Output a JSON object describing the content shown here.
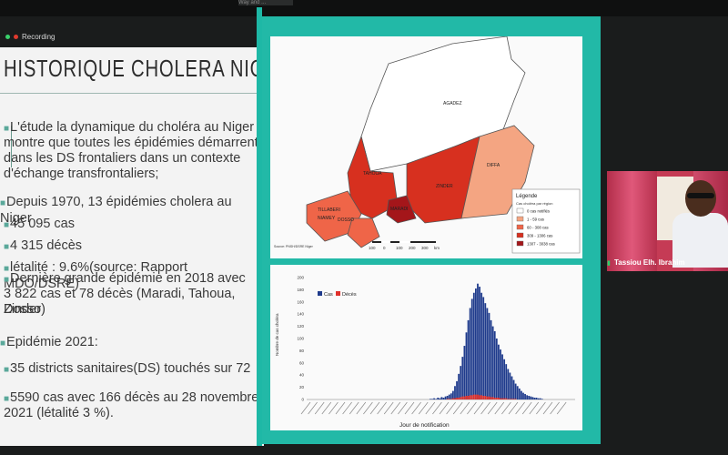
{
  "topbar": {
    "tab_label": "Way and ..."
  },
  "recording": {
    "label": "Recording"
  },
  "slide": {
    "title": "HISTORIQUE CHOLERA NIGER",
    "bullets": [
      "L'étude la dynamique du choléra au Niger",
      "montre que toutes les épidémies démarrent",
      "dans les DS frontaliers dans un contexte",
      "d'échange transfrontaliers;",
      "Depuis 1970, 13 épidémies cholera au Niger",
      "45 095 cas",
      "4 315 décès",
      "létalité : 9.6%(source: Rapport MDO/DSRE)",
      "Dernière grande épidémie en 2018 avec",
      "3 822 cas et 78 décès (Maradi, Tahoua, Dosso",
      "Zinder)",
      "Epidémie 2021:",
      "35 districts sanitaires(DS) touchés sur 72",
      "5590 cas avec 166 décès au 28 novembre",
      "2021 (létalité 3 %)."
    ]
  },
  "map": {
    "regions": [
      "AGADEZ",
      "DIFFA",
      "TAHOUA",
      "ZINDER",
      "TILLABERI",
      "MARADI",
      "NIAMEY",
      "DOSSO"
    ],
    "legend_title": "Légende",
    "legend_subtitle": "Cas choléra par région",
    "legend_items": [
      {
        "label": "0 cas notifiés",
        "color": "#ffffff"
      },
      {
        "label": "1 - 59 cas",
        "color": "#f4a582"
      },
      {
        "label": "60 - 308 cas",
        "color": "#ef6548"
      },
      {
        "label": "309 - 1306 cas",
        "color": "#d7301f"
      },
      {
        "label": "1307 - 3038 cas",
        "color": "#a4161a"
      }
    ],
    "scale_labels": [
      "100",
      "0",
      "100",
      "200",
      "300",
      "km"
    ],
    "source": "Source: PNSH/DSRE Niger"
  },
  "chart_data": {
    "type": "bar",
    "ylabel": "Nombre de cas choléra",
    "xlabel": "Jour de notification",
    "ylim": [
      0,
      200
    ],
    "yticks": [
      0,
      20,
      40,
      60,
      80,
      100,
      120,
      140,
      160,
      180,
      200
    ],
    "legend": [
      {
        "name": "Cas",
        "color": "#1f3b8c"
      },
      {
        "name": "Décès",
        "color": "#e0302a"
      }
    ],
    "series": [
      {
        "name": "Cas",
        "values": [
          1,
          1,
          2,
          1,
          3,
          2,
          4,
          3,
          5,
          6,
          8,
          10,
          14,
          22,
          30,
          42,
          55,
          70,
          88,
          110,
          130,
          150,
          165,
          175,
          182,
          190,
          185,
          175,
          168,
          158,
          150,
          142,
          130,
          120,
          112,
          100,
          90,
          82,
          74,
          66,
          58,
          50,
          44,
          38,
          32,
          26,
          22,
          18,
          14,
          11,
          9,
          7,
          6,
          5,
          4,
          3,
          3,
          2,
          2,
          1
        ]
      },
      {
        "name": "Décès",
        "values": [
          0,
          0,
          0,
          0,
          0,
          0,
          0,
          0,
          0,
          1,
          1,
          1,
          2,
          2,
          3,
          3,
          4,
          5,
          5,
          6,
          6,
          7,
          7,
          8,
          8,
          8,
          7,
          7,
          6,
          6,
          5,
          5,
          4,
          4,
          3,
          3,
          3,
          2,
          2,
          2,
          2,
          1,
          1,
          1,
          1,
          1,
          0,
          0,
          0,
          0,
          0,
          0,
          0,
          0,
          0,
          0,
          0,
          0,
          0,
          0
        ]
      }
    ]
  },
  "video": {
    "participant_name": "Tassiou Elh. Ibrahim"
  }
}
